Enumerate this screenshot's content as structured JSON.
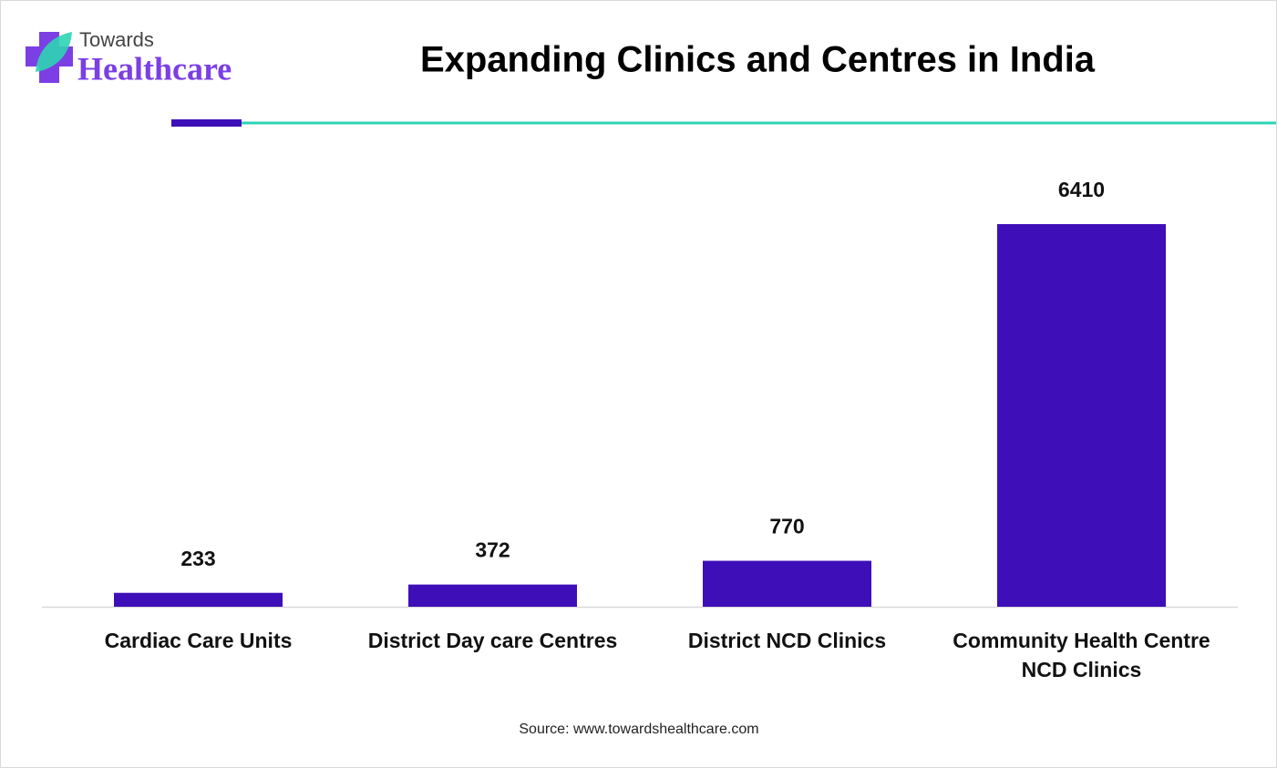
{
  "logo": {
    "line1": "Towards",
    "line2": "Healthcare"
  },
  "chart_data": {
    "type": "bar",
    "title": "Expanding Clinics and Centres in India",
    "categories": [
      "Cardiac Care Units",
      "District Day care Centres",
      "District NCD Clinics",
      "Community Health Centre NCD Clinics"
    ],
    "values": [
      233,
      372,
      770,
      6410
    ],
    "color": "#3e0fb9"
  },
  "source": "Source: www.towardshealthcare.com"
}
